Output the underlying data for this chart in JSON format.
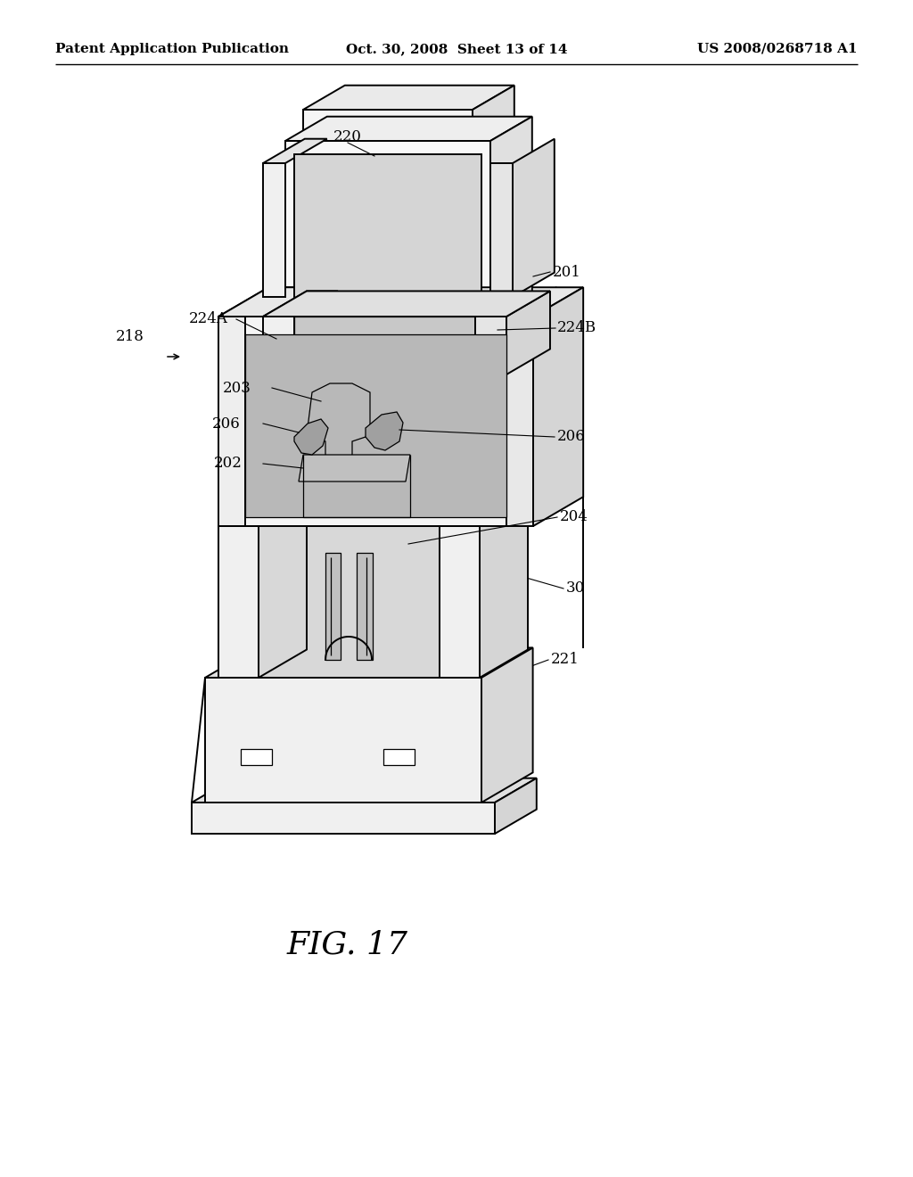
{
  "background_color": "#ffffff",
  "header_left": "Patent Application Publication",
  "header_center": "Oct. 30, 2008  Sheet 13 of 14",
  "header_right": "US 2008/0268718 A1",
  "figure_label": "FIG. 17",
  "line_color": "#000000",
  "lw_main": 1.4,
  "lw_thin": 0.9,
  "lw_thick": 2.2
}
